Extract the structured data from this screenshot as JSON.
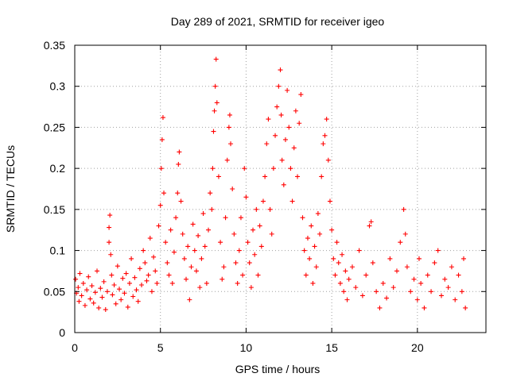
{
  "chart_data": {
    "type": "scatter",
    "title": "Day 289 of 2021, SRMTID for receiver igeo",
    "xlabel": "GPS time / hours",
    "ylabel": "SRMTID / TECUs",
    "xlim": [
      0,
      24
    ],
    "ylim": [
      0,
      0.35
    ],
    "xticks": [
      0,
      5,
      10,
      15,
      20
    ],
    "xtick_labels": [
      "0",
      "5",
      "10",
      "15",
      "20"
    ],
    "yticks": [
      0,
      0.05,
      0.1,
      0.15,
      0.2,
      0.25,
      0.3,
      0.35
    ],
    "ytick_labels": [
      "0",
      "0.05",
      "0.1",
      "0.15",
      "0.2",
      "0.25",
      "0.3",
      "0.35"
    ],
    "grid": true,
    "marker": "plus",
    "marker_color": "#ff0000",
    "series": [
      {
        "name": "SRMTID",
        "color": "#ff0000",
        "points": [
          [
            0.05,
            0.065
          ],
          [
            0.1,
            0.048
          ],
          [
            0.2,
            0.055
          ],
          [
            0.25,
            0.038
          ],
          [
            0.3,
            0.072
          ],
          [
            0.4,
            0.045
          ],
          [
            0.5,
            0.06
          ],
          [
            0.6,
            0.033
          ],
          [
            0.7,
            0.052
          ],
          [
            0.8,
            0.068
          ],
          [
            0.9,
            0.041
          ],
          [
            1.0,
            0.057
          ],
          [
            1.1,
            0.036
          ],
          [
            1.2,
            0.049
          ],
          [
            1.3,
            0.075
          ],
          [
            1.4,
            0.03
          ],
          [
            1.5,
            0.054
          ],
          [
            1.6,
            0.043
          ],
          [
            1.7,
            0.062
          ],
          [
            1.8,
            0.028
          ],
          [
            1.9,
            0.05
          ],
          [
            2.0,
            0.11
          ],
          [
            2.0,
            0.128
          ],
          [
            2.05,
            0.143
          ],
          [
            2.1,
            0.095
          ],
          [
            2.15,
            0.07
          ],
          [
            2.2,
            0.046
          ],
          [
            2.3,
            0.058
          ],
          [
            2.4,
            0.035
          ],
          [
            2.5,
            0.081
          ],
          [
            2.6,
            0.053
          ],
          [
            2.7,
            0.04
          ],
          [
            2.8,
            0.066
          ],
          [
            2.9,
            0.048
          ],
          [
            3.0,
            0.072
          ],
          [
            3.1,
            0.031
          ],
          [
            3.2,
            0.06
          ],
          [
            3.3,
            0.09
          ],
          [
            3.4,
            0.044
          ],
          [
            3.5,
            0.067
          ],
          [
            3.6,
            0.052
          ],
          [
            3.7,
            0.038
          ],
          [
            3.8,
            0.078
          ],
          [
            3.9,
            0.058
          ],
          [
            4.0,
            0.1
          ],
          [
            4.1,
            0.085
          ],
          [
            4.2,
            0.063
          ],
          [
            4.3,
            0.07
          ],
          [
            4.4,
            0.115
          ],
          [
            4.5,
            0.05
          ],
          [
            4.6,
            0.092
          ],
          [
            4.7,
            0.075
          ],
          [
            4.8,
            0.06
          ],
          [
            4.9,
            0.13
          ],
          [
            5.0,
            0.155
          ],
          [
            5.05,
            0.2
          ],
          [
            5.1,
            0.235
          ],
          [
            5.15,
            0.262
          ],
          [
            5.2,
            0.17
          ],
          [
            5.3,
            0.11
          ],
          [
            5.4,
            0.085
          ],
          [
            5.5,
            0.07
          ],
          [
            5.6,
            0.125
          ],
          [
            5.7,
            0.06
          ],
          [
            5.8,
            0.098
          ],
          [
            5.9,
            0.14
          ],
          [
            6.0,
            0.17
          ],
          [
            6.05,
            0.205
          ],
          [
            6.1,
            0.22
          ],
          [
            6.2,
            0.16
          ],
          [
            6.3,
            0.12
          ],
          [
            6.4,
            0.09
          ],
          [
            6.5,
            0.065
          ],
          [
            6.6,
            0.105
          ],
          [
            6.7,
            0.04
          ],
          [
            6.8,
            0.08
          ],
          [
            6.9,
            0.132
          ],
          [
            7.0,
            0.1
          ],
          [
            7.1,
            0.075
          ],
          [
            7.2,
            0.118
          ],
          [
            7.3,
            0.055
          ],
          [
            7.4,
            0.09
          ],
          [
            7.5,
            0.145
          ],
          [
            7.6,
            0.105
          ],
          [
            7.7,
            0.06
          ],
          [
            7.8,
            0.125
          ],
          [
            7.9,
            0.17
          ],
          [
            8.0,
            0.15
          ],
          [
            8.05,
            0.2
          ],
          [
            8.1,
            0.245
          ],
          [
            8.15,
            0.27
          ],
          [
            8.2,
            0.3
          ],
          [
            8.25,
            0.333
          ],
          [
            8.3,
            0.28
          ],
          [
            8.4,
            0.19
          ],
          [
            8.5,
            0.11
          ],
          [
            8.6,
            0.065
          ],
          [
            8.7,
            0.08
          ],
          [
            8.8,
            0.14
          ],
          [
            8.9,
            0.21
          ],
          [
            9.0,
            0.25
          ],
          [
            9.05,
            0.265
          ],
          [
            9.1,
            0.23
          ],
          [
            9.2,
            0.175
          ],
          [
            9.3,
            0.12
          ],
          [
            9.4,
            0.085
          ],
          [
            9.5,
            0.06
          ],
          [
            9.6,
            0.1
          ],
          [
            9.7,
            0.14
          ],
          [
            9.8,
            0.07
          ],
          [
            9.9,
            0.2
          ],
          [
            10.0,
            0.165
          ],
          [
            10.1,
            0.11
          ],
          [
            10.2,
            0.085
          ],
          [
            10.3,
            0.055
          ],
          [
            10.4,
            0.125
          ],
          [
            10.5,
            0.095
          ],
          [
            10.6,
            0.15
          ],
          [
            10.7,
            0.07
          ],
          [
            10.8,
            0.13
          ],
          [
            10.9,
            0.105
          ],
          [
            11.0,
            0.16
          ],
          [
            11.1,
            0.19
          ],
          [
            11.2,
            0.23
          ],
          [
            11.3,
            0.26
          ],
          [
            11.4,
            0.15
          ],
          [
            11.5,
            0.12
          ],
          [
            11.6,
            0.2
          ],
          [
            11.7,
            0.24
          ],
          [
            11.8,
            0.275
          ],
          [
            11.9,
            0.3
          ],
          [
            12.0,
            0.32
          ],
          [
            12.05,
            0.265
          ],
          [
            12.1,
            0.21
          ],
          [
            12.2,
            0.18
          ],
          [
            12.3,
            0.235
          ],
          [
            12.4,
            0.295
          ],
          [
            12.5,
            0.25
          ],
          [
            12.6,
            0.2
          ],
          [
            12.7,
            0.16
          ],
          [
            12.8,
            0.225
          ],
          [
            12.9,
            0.27
          ],
          [
            13.0,
            0.19
          ],
          [
            13.1,
            0.255
          ],
          [
            13.2,
            0.29
          ],
          [
            13.3,
            0.14
          ],
          [
            13.4,
            0.1
          ],
          [
            13.5,
            0.07
          ],
          [
            13.6,
            0.115
          ],
          [
            13.7,
            0.09
          ],
          [
            13.8,
            0.13
          ],
          [
            13.9,
            0.06
          ],
          [
            14.0,
            0.105
          ],
          [
            14.1,
            0.08
          ],
          [
            14.2,
            0.145
          ],
          [
            14.3,
            0.12
          ],
          [
            14.4,
            0.19
          ],
          [
            14.5,
            0.23
          ],
          [
            14.6,
            0.24
          ],
          [
            14.7,
            0.26
          ],
          [
            14.8,
            0.21
          ],
          [
            14.9,
            0.16
          ],
          [
            15.0,
            0.125
          ],
          [
            15.1,
            0.09
          ],
          [
            15.2,
            0.07
          ],
          [
            15.3,
            0.11
          ],
          [
            15.4,
            0.085
          ],
          [
            15.5,
            0.06
          ],
          [
            15.6,
            0.095
          ],
          [
            15.7,
            0.05
          ],
          [
            15.8,
            0.075
          ],
          [
            15.9,
            0.04
          ],
          [
            16.0,
            0.065
          ],
          [
            16.2,
            0.08
          ],
          [
            16.4,
            0.055
          ],
          [
            16.6,
            0.1
          ],
          [
            16.8,
            0.045
          ],
          [
            17.0,
            0.07
          ],
          [
            17.2,
            0.13
          ],
          [
            17.3,
            0.135
          ],
          [
            17.4,
            0.085
          ],
          [
            17.6,
            0.05
          ],
          [
            17.8,
            0.03
          ],
          [
            18.0,
            0.06
          ],
          [
            18.2,
            0.042
          ],
          [
            18.4,
            0.09
          ],
          [
            18.6,
            0.055
          ],
          [
            18.8,
            0.075
          ],
          [
            19.0,
            0.11
          ],
          [
            19.2,
            0.15
          ],
          [
            19.3,
            0.12
          ],
          [
            19.4,
            0.08
          ],
          [
            19.6,
            0.05
          ],
          [
            19.8,
            0.065
          ],
          [
            20.0,
            0.04
          ],
          [
            20.1,
            0.09
          ],
          [
            20.2,
            0.06
          ],
          [
            20.4,
            0.03
          ],
          [
            20.6,
            0.07
          ],
          [
            20.8,
            0.05
          ],
          [
            21.0,
            0.085
          ],
          [
            21.2,
            0.1
          ],
          [
            21.4,
            0.045
          ],
          [
            21.6,
            0.065
          ],
          [
            21.8,
            0.055
          ],
          [
            22.0,
            0.08
          ],
          [
            22.2,
            0.04
          ],
          [
            22.4,
            0.07
          ],
          [
            22.6,
            0.05
          ],
          [
            22.7,
            0.09
          ],
          [
            22.8,
            0.03
          ]
        ]
      }
    ]
  }
}
